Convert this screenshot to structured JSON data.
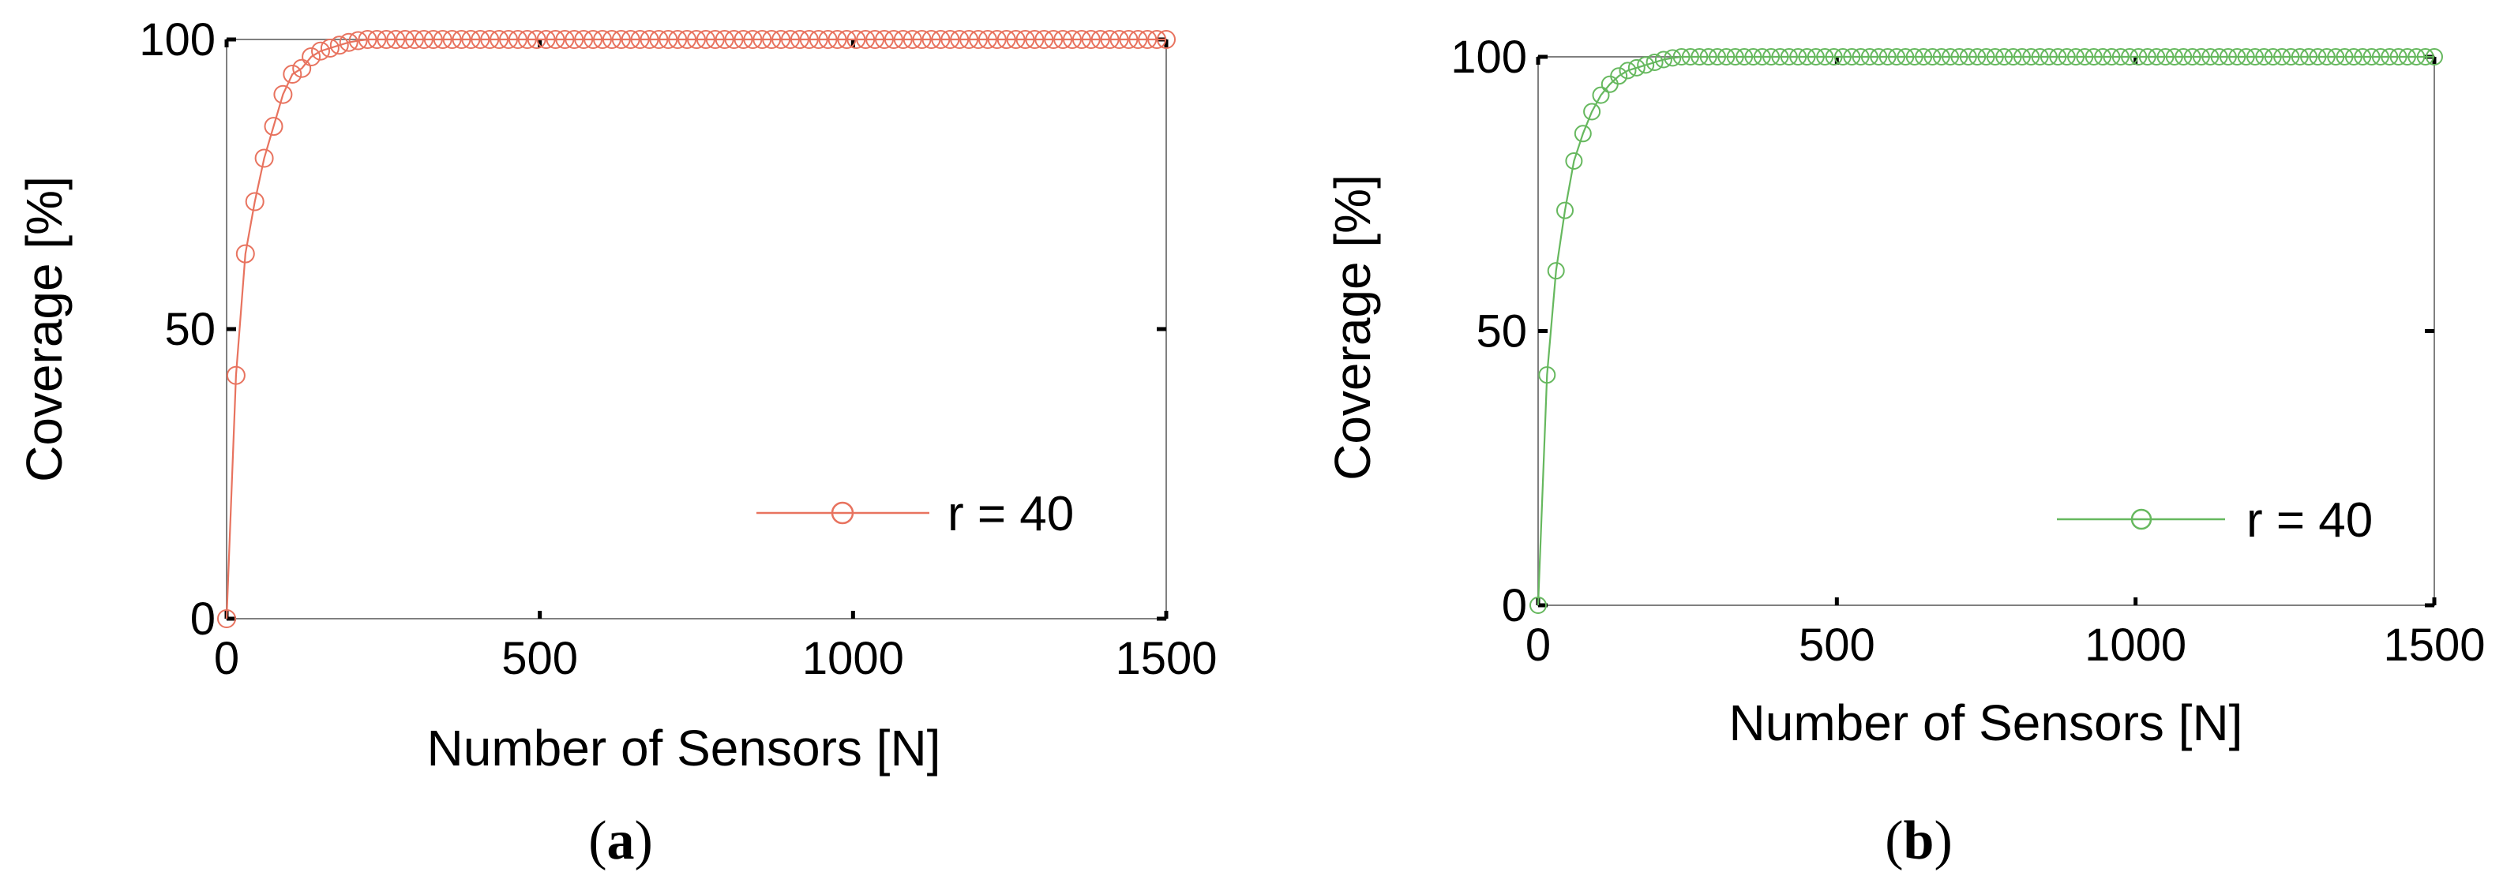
{
  "colors": {
    "panel_a": "#e8735f",
    "panel_b": "#66b85e",
    "axis": "#000000",
    "frame": "#808080"
  },
  "chart_data": [
    {
      "type": "line",
      "panel": "a",
      "panel_label_open": "(",
      "panel_label_letter": "a",
      "panel_label_close": ")",
      "xlabel": "Number of Sensors [N]",
      "ylabel": "Coverage [%]",
      "xlim": [
        0,
        1500
      ],
      "ylim": [
        0,
        100
      ],
      "xticks": [
        0,
        500,
        1000,
        1500
      ],
      "yticks": [
        0,
        50,
        100
      ],
      "x_tick_labels": [
        "0",
        "500",
        "1000",
        "1500"
      ],
      "y_tick_labels": [
        "0",
        "50",
        "100"
      ],
      "legend_position": "bottom-right",
      "marker": "circle",
      "grid": false,
      "series": [
        {
          "name": "r = 40",
          "color": "#e8735f",
          "x": [
            0,
            15,
            30,
            45,
            60,
            75,
            90,
            105,
            120,
            135,
            150,
            165,
            180,
            195,
            210,
            225,
            240,
            255,
            270,
            285,
            300,
            315,
            330,
            345,
            360,
            375,
            390,
            405,
            420,
            435,
            450,
            465,
            480,
            495,
            510,
            525,
            540,
            555,
            570,
            585,
            600,
            615,
            630,
            645,
            660,
            675,
            690,
            705,
            720,
            735,
            750,
            765,
            780,
            795,
            810,
            825,
            840,
            855,
            870,
            885,
            900,
            915,
            930,
            945,
            960,
            975,
            990,
            1005,
            1020,
            1035,
            1050,
            1065,
            1080,
            1095,
            1110,
            1125,
            1140,
            1155,
            1170,
            1185,
            1200,
            1215,
            1230,
            1245,
            1260,
            1275,
            1290,
            1305,
            1320,
            1335,
            1350,
            1365,
            1380,
            1395,
            1410,
            1425,
            1440,
            1455,
            1470,
            1485,
            1500
          ],
          "y": [
            0,
            42,
            63,
            72,
            79.5,
            85,
            90.5,
            94,
            95,
            97,
            98,
            98.5,
            99,
            99.5,
            99.8,
            100,
            100,
            100,
            100,
            100,
            100,
            100,
            100,
            100,
            100,
            100,
            100,
            100,
            100,
            100,
            100,
            100,
            100,
            100,
            100,
            100,
            100,
            100,
            100,
            100,
            100,
            100,
            100,
            100,
            100,
            100,
            100,
            100,
            100,
            100,
            100,
            100,
            100,
            100,
            100,
            100,
            100,
            100,
            100,
            100,
            100,
            100,
            100,
            100,
            100,
            100,
            100,
            100,
            100,
            100,
            100,
            100,
            100,
            100,
            100,
            100,
            100,
            100,
            100,
            100,
            100,
            100,
            100,
            100,
            100,
            100,
            100,
            100,
            100,
            100,
            100,
            100,
            100,
            100,
            100,
            100,
            100,
            100,
            100,
            100,
            100
          ]
        }
      ]
    },
    {
      "type": "line",
      "panel": "b",
      "panel_label_open": "(",
      "panel_label_letter": "b",
      "panel_label_close": ")",
      "xlabel": "Number of Sensors [N]",
      "ylabel": "Coverage [%]",
      "xlim": [
        0,
        1500
      ],
      "ylim": [
        0,
        100
      ],
      "xticks": [
        0,
        500,
        1000,
        1500
      ],
      "yticks": [
        0,
        50,
        100
      ],
      "x_tick_labels": [
        "0",
        "500",
        "1000",
        "1500"
      ],
      "y_tick_labels": [
        "0",
        "50",
        "100"
      ],
      "legend_position": "bottom-right",
      "marker": "circle",
      "grid": false,
      "series": [
        {
          "name": "r = 40",
          "color": "#66b85e",
          "x": [
            0,
            15,
            30,
            45,
            60,
            75,
            90,
            105,
            120,
            135,
            150,
            165,
            180,
            195,
            210,
            225,
            240,
            255,
            270,
            285,
            300,
            315,
            330,
            345,
            360,
            375,
            390,
            405,
            420,
            435,
            450,
            465,
            480,
            495,
            510,
            525,
            540,
            555,
            570,
            585,
            600,
            615,
            630,
            645,
            660,
            675,
            690,
            705,
            720,
            735,
            750,
            765,
            780,
            795,
            810,
            825,
            840,
            855,
            870,
            885,
            900,
            915,
            930,
            945,
            960,
            975,
            990,
            1005,
            1020,
            1035,
            1050,
            1065,
            1080,
            1095,
            1110,
            1125,
            1140,
            1155,
            1170,
            1185,
            1200,
            1215,
            1230,
            1245,
            1260,
            1275,
            1290,
            1305,
            1320,
            1335,
            1350,
            1365,
            1380,
            1395,
            1410,
            1425,
            1440,
            1455,
            1470,
            1485,
            1500
          ],
          "y": [
            0,
            42,
            61,
            72,
            81,
            86,
            90,
            93,
            95,
            96.5,
            97.5,
            98,
            98.5,
            99,
            99.5,
            99.8,
            100,
            100,
            100,
            100,
            100,
            100,
            100,
            100,
            100,
            100,
            100,
            100,
            100,
            100,
            100,
            100,
            100,
            100,
            100,
            100,
            100,
            100,
            100,
            100,
            100,
            100,
            100,
            100,
            100,
            100,
            100,
            100,
            100,
            100,
            100,
            100,
            100,
            100,
            100,
            100,
            100,
            100,
            100,
            100,
            100,
            100,
            100,
            100,
            100,
            100,
            100,
            100,
            100,
            100,
            100,
            100,
            100,
            100,
            100,
            100,
            100,
            100,
            100,
            100,
            100,
            100,
            100,
            100,
            100,
            100,
            100,
            100,
            100,
            100,
            100,
            100,
            100,
            100,
            100,
            100,
            100,
            100,
            100,
            100,
            100
          ]
        }
      ]
    }
  ]
}
